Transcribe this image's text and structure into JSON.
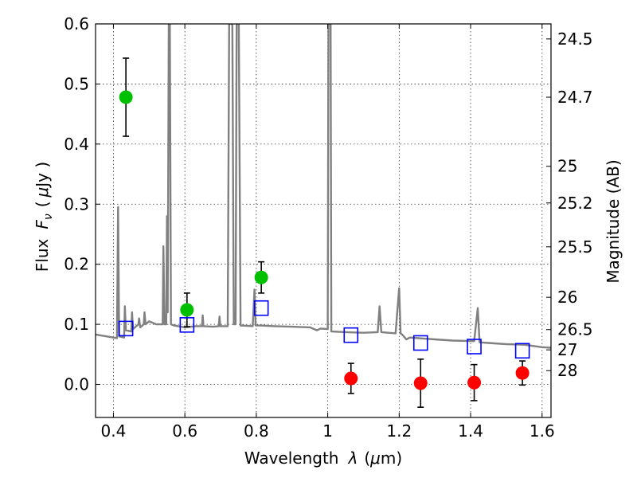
{
  "chart_data": {
    "type": "scatter",
    "xlabel_prefix": "Wavelength",
    "xlabel_symbol": "λ",
    "xlabel_unit_open": "(",
    "xlabel_unit_mu": "μ",
    "xlabel_unit_rest": "m)",
    "ylabel_prefix": "Flux",
    "ylabel_symbol": "F",
    "ylabel_subscript": "ν",
    "ylabel_unit_open": "(",
    "ylabel_unit_mu": "μ",
    "ylabel_unit_rest": "Jy )",
    "right_ylabel": "Magnitude (AB)",
    "xlim": [
      0.35,
      1.625
    ],
    "ylim": [
      -0.055,
      0.6
    ],
    "x_ticks": [
      0.4,
      0.6,
      0.8,
      1.0,
      1.2,
      1.4,
      1.6
    ],
    "x_tick_labels": [
      "0.4",
      "0.6",
      "0.8",
      "1",
      "1.2",
      "1.4",
      "1.6"
    ],
    "y_ticks": [
      0.0,
      0.1,
      0.2,
      0.3,
      0.4,
      0.5,
      0.6
    ],
    "y_tick_labels": [
      "0.0",
      "0.1",
      "0.2",
      "0.3",
      "0.4",
      "0.5",
      "0.6"
    ],
    "right_ticks": [
      {
        "label": "24.5",
        "flux": 0.575
      },
      {
        "label": "24.7",
        "flux": 0.478
      },
      {
        "label": "25",
        "flux": 0.363
      },
      {
        "label": "25.2",
        "flux": 0.302
      },
      {
        "label": "25.5",
        "flux": 0.229
      },
      {
        "label": "26",
        "flux": 0.145
      },
      {
        "label": "26.5",
        "flux": 0.0912
      },
      {
        "label": "27",
        "flux": 0.0575
      },
      {
        "label": "28",
        "flux": 0.0229
      }
    ],
    "grid": true,
    "series": [
      {
        "kind": "line",
        "color": "#808080",
        "points": [
          [
            0.35,
            0.083
          ],
          [
            0.38,
            0.08
          ],
          [
            0.41,
            0.077
          ],
          [
            0.413,
            0.295
          ],
          [
            0.416,
            0.08
          ],
          [
            0.43,
            0.078
          ],
          [
            0.432,
            0.13
          ],
          [
            0.435,
            0.09
          ],
          [
            0.45,
            0.088
          ],
          [
            0.452,
            0.12
          ],
          [
            0.455,
            0.092
          ],
          [
            0.47,
            0.1
          ],
          [
            0.472,
            0.11
          ],
          [
            0.475,
            0.095
          ],
          [
            0.485,
            0.1
          ],
          [
            0.487,
            0.12
          ],
          [
            0.49,
            0.1
          ],
          [
            0.5,
            0.105
          ],
          [
            0.52,
            0.1
          ],
          [
            0.538,
            0.1
          ],
          [
            0.54,
            0.23
          ],
          [
            0.543,
            0.1
          ],
          [
            0.548,
            0.1
          ],
          [
            0.55,
            0.28
          ],
          [
            0.552,
            0.12
          ],
          [
            0.555,
            0.6
          ],
          [
            0.558,
            0.6
          ],
          [
            0.561,
            0.1
          ],
          [
            0.57,
            0.098
          ],
          [
            0.6,
            0.095
          ],
          [
            0.63,
            0.097
          ],
          [
            0.648,
            0.097
          ],
          [
            0.65,
            0.115
          ],
          [
            0.652,
            0.097
          ],
          [
            0.68,
            0.096
          ],
          [
            0.695,
            0.097
          ],
          [
            0.697,
            0.113
          ],
          [
            0.699,
            0.097
          ],
          [
            0.72,
            0.097
          ],
          [
            0.724,
            0.6
          ],
          [
            0.733,
            0.6
          ],
          [
            0.737,
            0.1
          ],
          [
            0.742,
            0.1
          ],
          [
            0.745,
            0.6
          ],
          [
            0.751,
            0.6
          ],
          [
            0.756,
            0.098
          ],
          [
            0.79,
            0.097
          ],
          [
            0.795,
            0.158
          ],
          [
            0.798,
            0.098
          ],
          [
            0.81,
            0.098
          ],
          [
            0.85,
            0.097
          ],
          [
            0.9,
            0.096
          ],
          [
            0.95,
            0.095
          ],
          [
            0.97,
            0.09
          ],
          [
            0.98,
            0.093
          ],
          [
            1.0,
            0.092
          ],
          [
            1.002,
            0.6
          ],
          [
            1.008,
            0.6
          ],
          [
            1.01,
            0.088
          ],
          [
            1.05,
            0.087
          ],
          [
            1.1,
            0.086
          ],
          [
            1.14,
            0.087
          ],
          [
            1.145,
            0.13
          ],
          [
            1.15,
            0.087
          ],
          [
            1.19,
            0.085
          ],
          [
            1.2,
            0.16
          ],
          [
            1.204,
            0.085
          ],
          [
            1.21,
            0.082
          ],
          [
            1.22,
            0.075
          ],
          [
            1.23,
            0.078
          ],
          [
            1.3,
            0.075
          ],
          [
            1.35,
            0.073
          ],
          [
            1.41,
            0.072
          ],
          [
            1.42,
            0.127
          ],
          [
            1.425,
            0.07
          ],
          [
            1.45,
            0.069
          ],
          [
            1.5,
            0.067
          ],
          [
            1.55,
            0.066
          ],
          [
            1.6,
            0.062
          ],
          [
            1.625,
            0.061
          ]
        ]
      },
      {
        "kind": "points",
        "marker": "circle",
        "color": "#00c000",
        "points": [
          {
            "x": 0.435,
            "y": 0.478,
            "err": 0.065
          },
          {
            "x": 0.606,
            "y": 0.124,
            "err": 0.028
          },
          {
            "x": 0.814,
            "y": 0.178,
            "err": 0.026
          }
        ]
      },
      {
        "kind": "points",
        "marker": "circle",
        "color": "#ff0000",
        "points": [
          {
            "x": 1.065,
            "y": 0.01,
            "err": 0.025
          },
          {
            "x": 1.26,
            "y": 0.002,
            "err": 0.04
          },
          {
            "x": 1.41,
            "y": 0.003,
            "err": 0.03
          },
          {
            "x": 1.545,
            "y": 0.019,
            "err": 0.02
          }
        ]
      },
      {
        "kind": "points",
        "marker": "square",
        "color": "#0000ff",
        "points": [
          {
            "x": 0.435,
            "y": 0.093
          },
          {
            "x": 0.606,
            "y": 0.099
          },
          {
            "x": 0.814,
            "y": 0.127
          },
          {
            "x": 1.065,
            "y": 0.082
          },
          {
            "x": 1.26,
            "y": 0.069
          },
          {
            "x": 1.41,
            "y": 0.063
          },
          {
            "x": 1.545,
            "y": 0.056
          }
        ]
      }
    ]
  }
}
